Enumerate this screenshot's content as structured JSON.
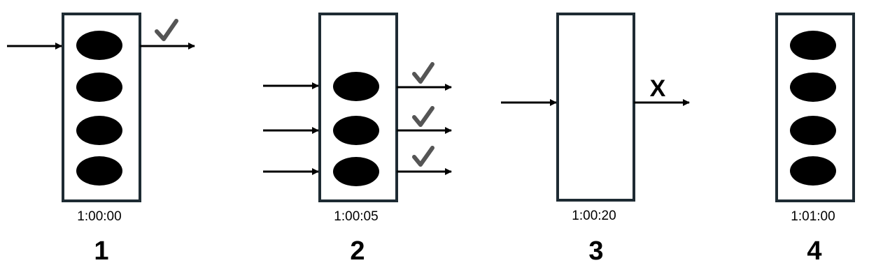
{
  "colors": {
    "bucket_border": "#1e2b33",
    "token_fill": "#000000",
    "arrow": "#000000",
    "check": "#555555"
  },
  "panels": [
    {
      "step": "1",
      "time": "1:00:00",
      "tokens": 4,
      "incoming_requests": 1,
      "results": [
        "check"
      ]
    },
    {
      "step": "2",
      "time": "1:00:05",
      "tokens": 3,
      "incoming_requests": 3,
      "results": [
        "check",
        "check",
        "check"
      ]
    },
    {
      "step": "3",
      "time": "1:00:20",
      "tokens": 0,
      "incoming_requests": 1,
      "results": [
        "X"
      ]
    },
    {
      "step": "4",
      "time": "1:01:00",
      "tokens": 4,
      "incoming_requests": 0,
      "results": []
    }
  ],
  "icons": {
    "check": "check-icon",
    "reject": "x-icon"
  }
}
